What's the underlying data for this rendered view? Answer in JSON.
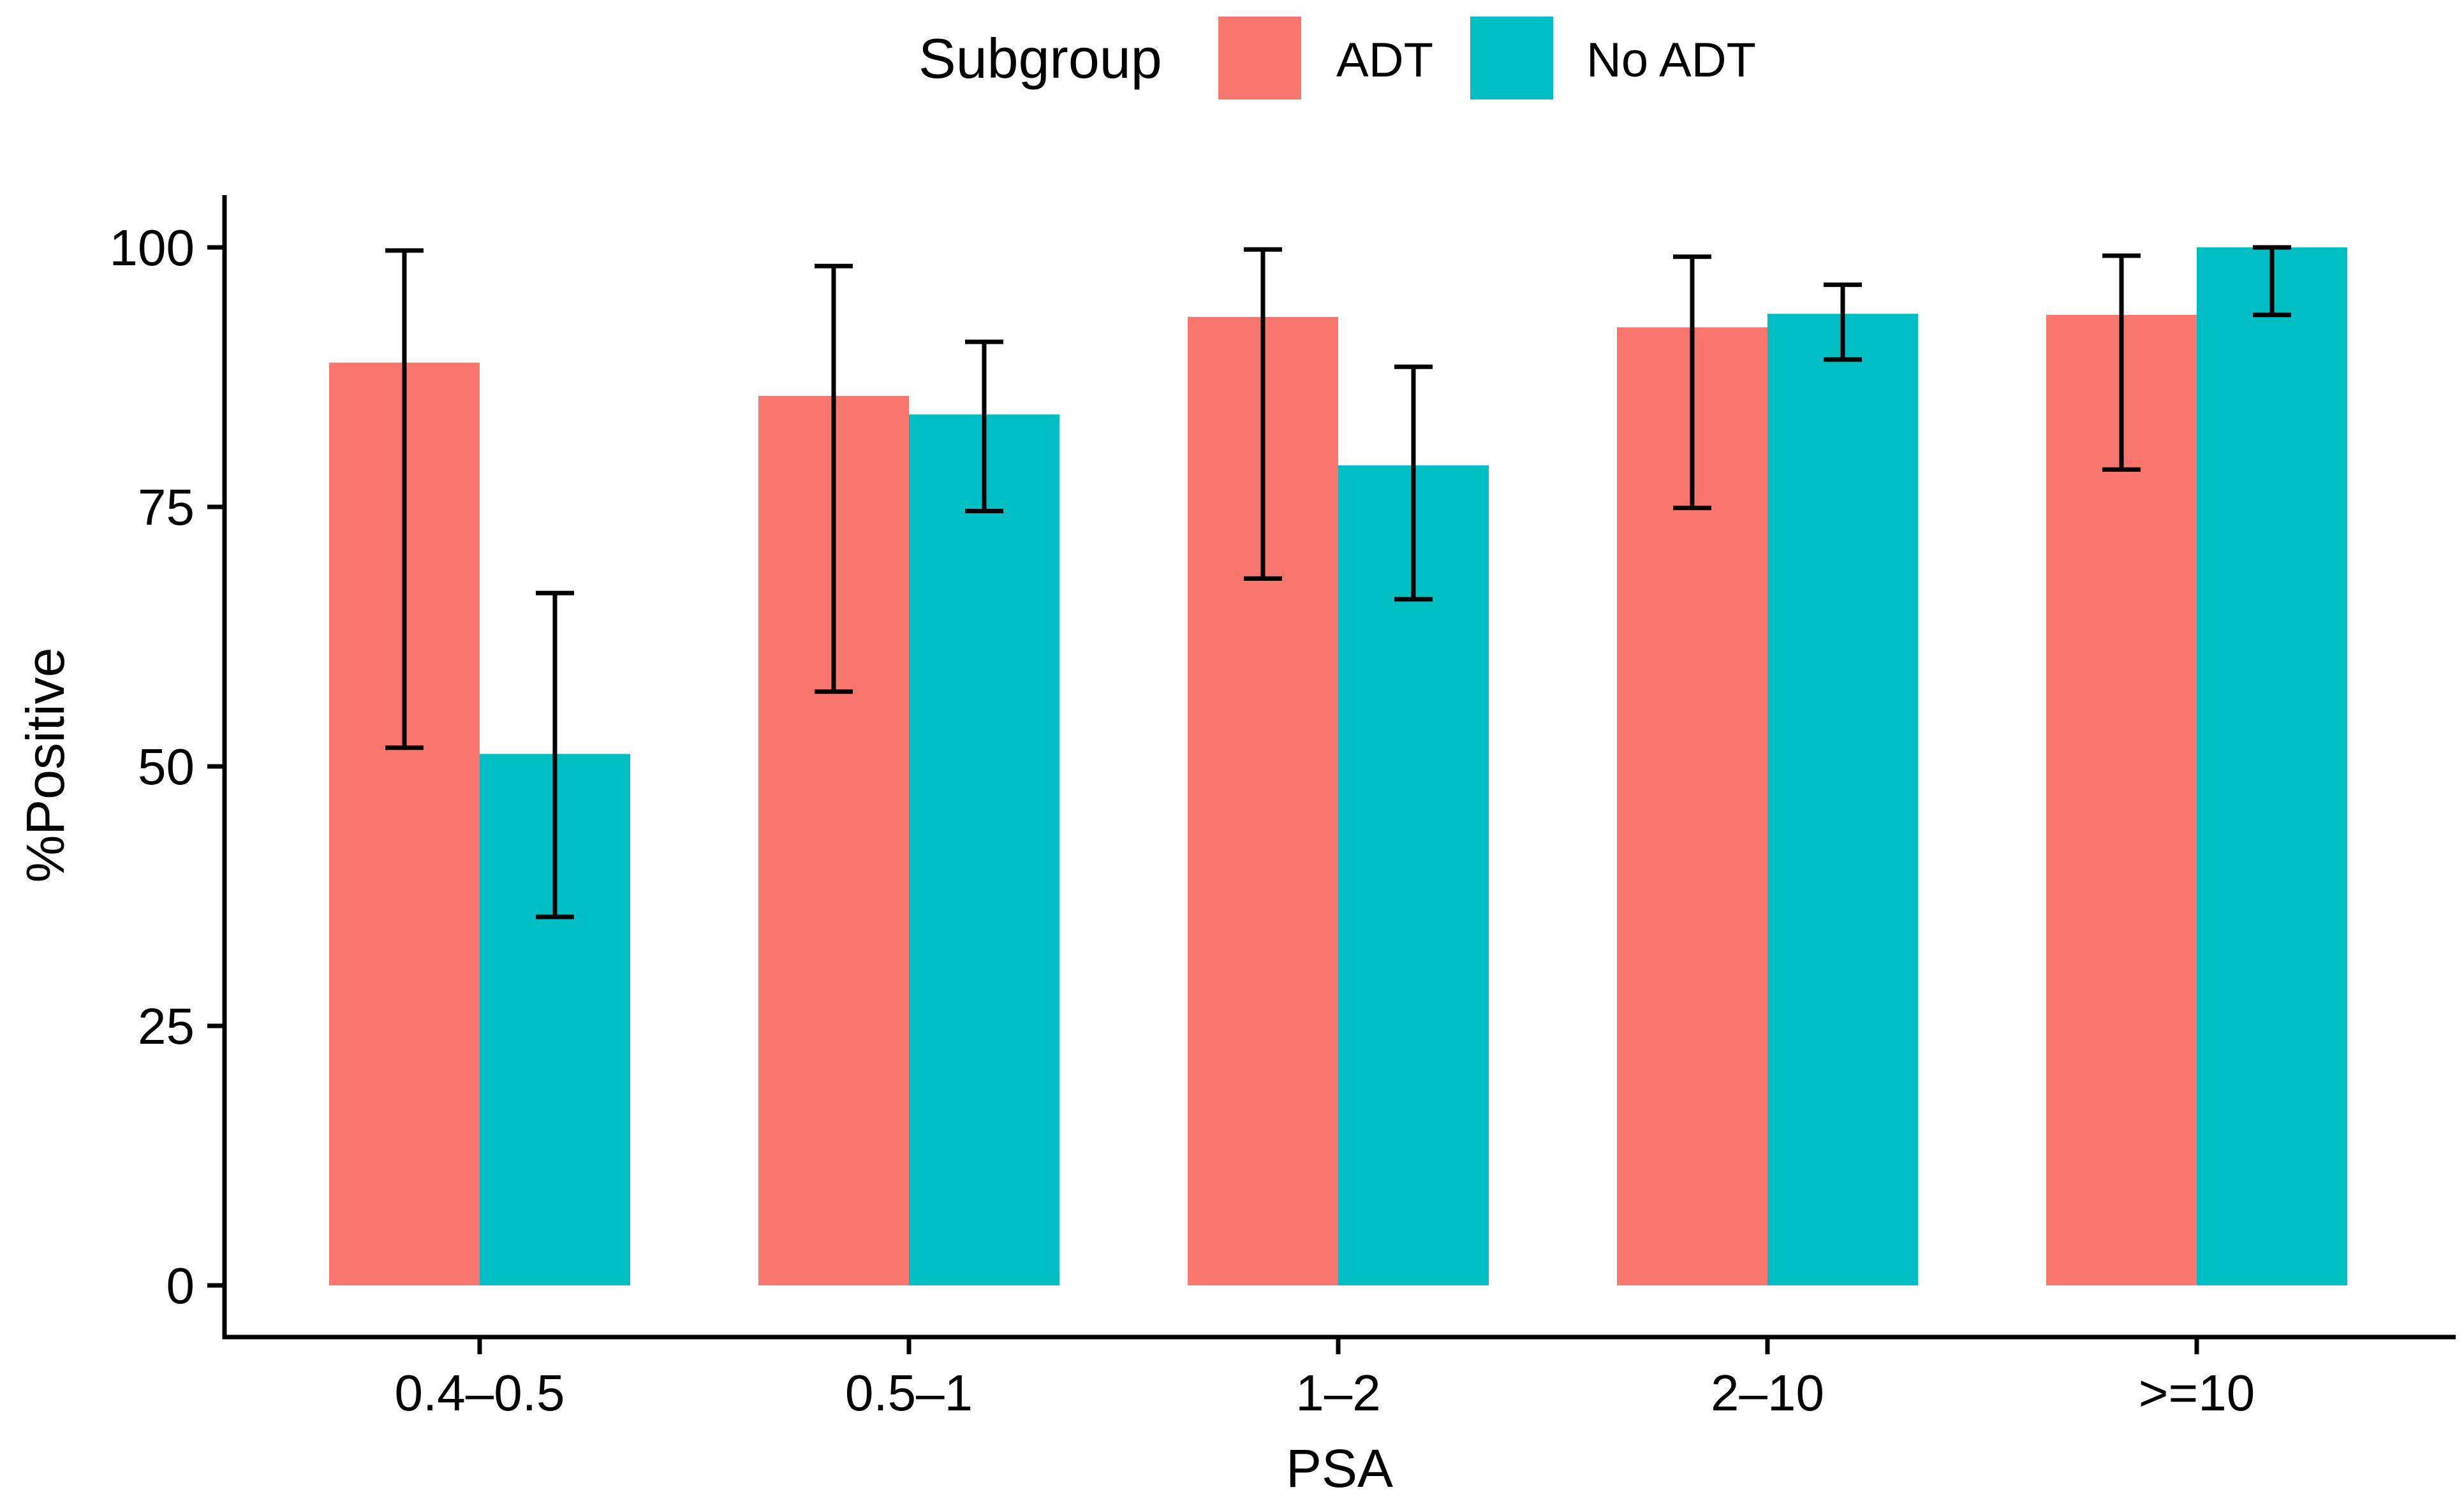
{
  "legend": {
    "title": "Subgroup",
    "items": [
      {
        "label": "ADT",
        "color": "#F8766D"
      },
      {
        "label": "No ADT",
        "color": "#00BFC4"
      }
    ]
  },
  "chart_data": {
    "type": "bar",
    "xlabel": "PSA",
    "ylabel": "%Positive",
    "categories": [
      "0.4–0.5",
      "0.5–1",
      "1–2",
      "2–10",
      ">=10"
    ],
    "ylim": [
      -5,
      105
    ],
    "yticks": [
      0,
      25,
      50,
      75,
      100
    ],
    "grid": false,
    "legend_position": "top",
    "series": [
      {
        "name": "ADT",
        "color": "#F8766D",
        "values": [
          88.9,
          85.7,
          93.3,
          92.3,
          93.5
        ],
        "error_low": [
          51.8,
          57.2,
          68.1,
          74.9,
          78.6
        ],
        "error_high": [
          99.7,
          98.2,
          99.8,
          99.1,
          99.2
        ]
      },
      {
        "name": "No ADT",
        "color": "#00BFC4",
        "values": [
          51.2,
          83.9,
          79.0,
          93.6,
          100.0
        ],
        "error_low": [
          35.5,
          74.6,
          66.1,
          89.2,
          93.5
        ],
        "error_high": [
          66.7,
          90.9,
          88.5,
          96.4,
          100.0
        ]
      }
    ]
  }
}
